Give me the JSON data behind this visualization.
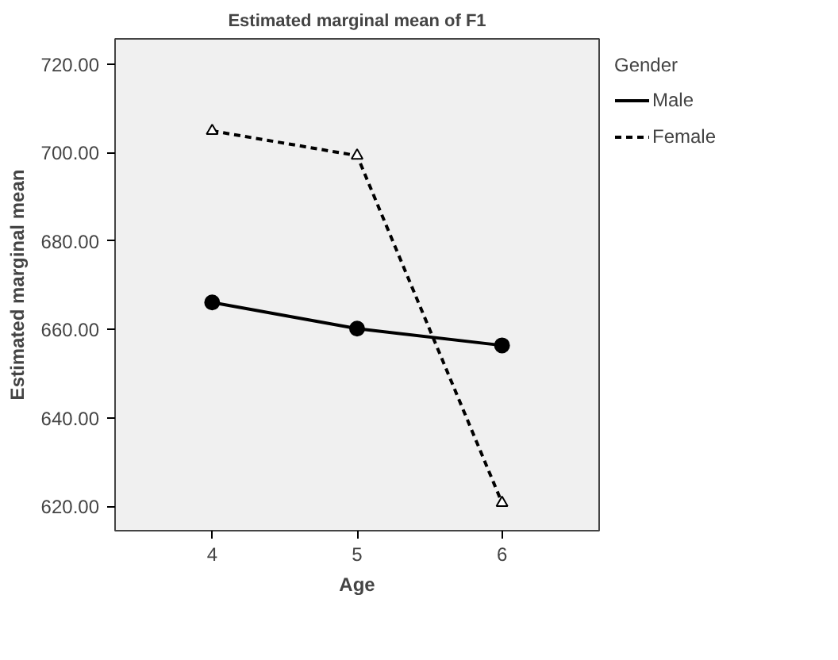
{
  "chart_data": {
    "type": "line",
    "title": "Estimated marginal mean of F1",
    "xlabel": "Age",
    "ylabel": "Estimated marginal mean",
    "legend_title": "Gender",
    "x": [
      4,
      5,
      6
    ],
    "series": [
      {
        "name": "Male",
        "color": "#000000",
        "values": [
          666.1,
          660.2,
          656.4
        ],
        "marker": "circle",
        "line_style": "solid"
      },
      {
        "name": "Female",
        "color": "#000000",
        "values": [
          704.9,
          699.3,
          620.8
        ],
        "marker": "triangle",
        "line_style": "dashed"
      }
    ],
    "xlim": [
      3.33,
      6.67
    ],
    "ylim": [
      614.5,
      725.7
    ],
    "xticks": [
      4,
      5,
      6
    ],
    "yticks": [
      {
        "value": 620,
        "label": "620.00"
      },
      {
        "value": 640,
        "label": "640.00"
      },
      {
        "value": 660,
        "label": "660.00"
      },
      {
        "value": 680,
        "label": "680.00"
      },
      {
        "value": 700,
        "label": "700.00"
      },
      {
        "value": 720,
        "label": "720.00"
      }
    ],
    "grid": false,
    "legend": "right"
  }
}
